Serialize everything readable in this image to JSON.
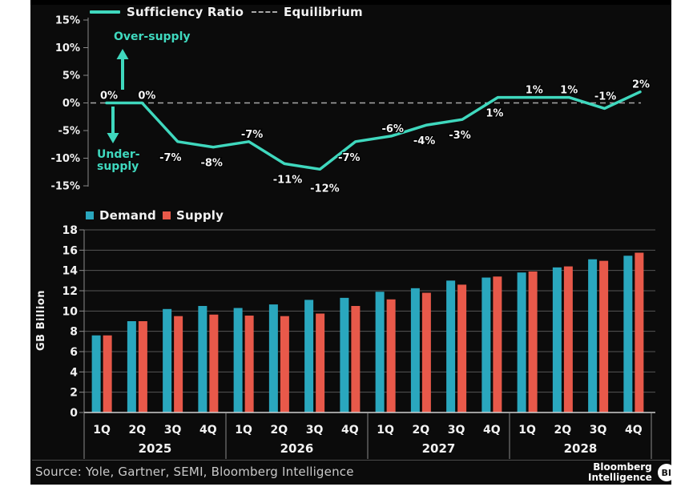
{
  "colors": {
    "panel_bg": "#0b0b0b",
    "page_bg": "#ffffff",
    "line_teal": "#3fd8be",
    "demand_teal": "#2aa7be",
    "supply_red": "#e8594a",
    "equilibrium_gray": "#a8a8a8",
    "grid_gray": "#565656",
    "axis_gray": "#8a8a8a",
    "text_white": "#f2f2f2",
    "source_gray": "#c9c9c9"
  },
  "top_chart": {
    "legend": [
      {
        "label": "Sufficiency Ratio",
        "swatch": "line"
      },
      {
        "label": "Equilibrium",
        "swatch": "dash"
      }
    ],
    "over_supply_label": "Over-supply",
    "under_supply_label": "Under-supply"
  },
  "chart_data": [
    {
      "type": "line",
      "name": "Sufficiency Ratio",
      "x_labels": [
        "1Q 2025",
        "2Q 2025",
        "3Q 2025",
        "4Q 2025",
        "1Q 2026",
        "2Q 2026",
        "3Q 2026",
        "4Q 2026",
        "1Q 2027",
        "2Q 2027",
        "3Q 2027",
        "4Q 2027",
        "1Q 2028",
        "2Q 2028",
        "3Q 2028",
        "4Q 2028"
      ],
      "values_pct": [
        0,
        0,
        -7,
        -8,
        -7,
        -11,
        -12,
        -7,
        -6,
        -4,
        -3,
        1,
        1,
        1,
        -1,
        2
      ],
      "point_labels": [
        "0%",
        "0%",
        "-7%",
        "-8%",
        "-7%",
        "-11%",
        "-12%",
        "-7%",
        "-6%",
        "-4%",
        "-3%",
        "1%",
        "1%",
        "1%",
        "-1%",
        "2%"
      ],
      "label_side": [
        "above",
        "above",
        "below",
        "below",
        "above",
        "below",
        "below",
        "below",
        "above",
        "below",
        "below",
        "below",
        "above",
        "above",
        "above",
        "above"
      ],
      "label_dx": [
        3,
        6,
        -9,
        -2,
        4,
        4,
        6,
        -8,
        2,
        -3,
        -3,
        -4,
        1,
        0,
        1,
        1
      ],
      "label_dy": [
        0,
        0,
        0,
        0,
        0,
        0,
        4,
        0,
        0,
        0,
        0,
        0,
        0,
        0,
        -6,
        0
      ],
      "ylim": [
        -15,
        15
      ],
      "y_ticks": [
        15,
        10,
        5,
        0,
        -5,
        -10,
        -15
      ],
      "y_tick_labels": [
        "15%",
        "10%",
        "5%",
        "0%",
        "-5%",
        "-10%",
        "-15%"
      ],
      "equilibrium_value": 0,
      "grid": false,
      "legend_position": "top"
    },
    {
      "type": "bar",
      "categories": [
        "1Q",
        "2Q",
        "3Q",
        "4Q",
        "1Q",
        "2Q",
        "3Q",
        "4Q",
        "1Q",
        "2Q",
        "3Q",
        "4Q",
        "1Q",
        "2Q",
        "3Q",
        "4Q"
      ],
      "year_groups": [
        "2025",
        "2026",
        "2027",
        "2028"
      ],
      "series": [
        {
          "name": "Demand",
          "values": [
            7.6,
            9.0,
            10.2,
            10.5,
            10.3,
            10.65,
            11.1,
            11.3,
            11.9,
            12.25,
            13.0,
            13.3,
            13.8,
            14.3,
            15.1,
            15.45
          ]
        },
        {
          "name": "Supply",
          "values": [
            7.6,
            9.0,
            9.5,
            9.65,
            9.55,
            9.5,
            9.75,
            10.5,
            11.15,
            11.8,
            12.6,
            13.4,
            13.9,
            14.4,
            14.95,
            15.75
          ]
        }
      ],
      "ylabel": "GB Billion",
      "ylim": [
        0,
        18
      ],
      "y_ticks": [
        18,
        16,
        14,
        12,
        10,
        8,
        6,
        4,
        2,
        0
      ],
      "grid": true,
      "legend_position": "top"
    }
  ],
  "footer": {
    "source": "Source: Yole, Gartner, SEMI, Bloomberg Intelligence",
    "brand_top": "Bloomberg",
    "brand_bottom": "Intelligence",
    "brand_badge": "BI"
  }
}
